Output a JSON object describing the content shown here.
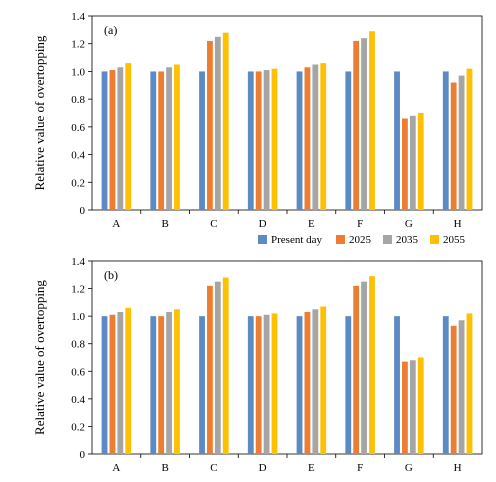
{
  "chart_data": [
    {
      "type": "bar",
      "panel_label": "(a)",
      "ylabel": "Relative value of overtopping",
      "ylim": [
        0,
        1.4
      ],
      "yticks": [
        "0",
        "0.2",
        "0.4",
        "0.6",
        "0.8",
        "1.0",
        "1.2",
        "1.4"
      ],
      "categories": [
        "A",
        "B",
        "C",
        "D",
        "E",
        "F",
        "G",
        "H"
      ],
      "series": [
        {
          "name": "Present day",
          "color": "#5b8ac4",
          "values": [
            1.0,
            1.0,
            1.0,
            1.0,
            1.0,
            1.0,
            1.0,
            1.0
          ]
        },
        {
          "name": "2025",
          "color": "#ed7d31",
          "values": [
            1.01,
            1.0,
            1.22,
            1.0,
            1.03,
            1.22,
            0.66,
            0.92
          ]
        },
        {
          "name": "2035",
          "color": "#a5a5a5",
          "values": [
            1.03,
            1.03,
            1.25,
            1.01,
            1.05,
            1.24,
            0.68,
            0.97
          ]
        },
        {
          "name": "2055",
          "color": "#ffc000",
          "values": [
            1.06,
            1.05,
            1.28,
            1.02,
            1.06,
            1.29,
            0.7,
            1.02
          ]
        }
      ]
    },
    {
      "type": "bar",
      "panel_label": "(b)",
      "ylabel": "Relative value of overtopping",
      "ylim": [
        0,
        1.4
      ],
      "yticks": [
        "0",
        "0.2",
        "0.4",
        "0.6",
        "0.8",
        "1.0",
        "1.2",
        "1.4"
      ],
      "categories": [
        "A",
        "B",
        "C",
        "D",
        "E",
        "F",
        "G",
        "H"
      ],
      "series": [
        {
          "name": "Present day",
          "color": "#5b8ac4",
          "values": [
            1.0,
            1.0,
            1.0,
            1.0,
            1.0,
            1.0,
            1.0,
            1.0
          ]
        },
        {
          "name": "2025",
          "color": "#ed7d31",
          "values": [
            1.01,
            1.0,
            1.22,
            1.0,
            1.03,
            1.22,
            0.67,
            0.93
          ]
        },
        {
          "name": "2035",
          "color": "#a5a5a5",
          "values": [
            1.03,
            1.03,
            1.25,
            1.01,
            1.05,
            1.25,
            0.68,
            0.97
          ]
        },
        {
          "name": "2055",
          "color": "#ffc000",
          "values": [
            1.06,
            1.05,
            1.28,
            1.02,
            1.07,
            1.29,
            0.7,
            1.02
          ]
        }
      ]
    }
  ],
  "legend": {
    "placement": "between-panels-right",
    "items": [
      "Present day",
      "2025",
      "2035",
      "2055"
    ]
  }
}
